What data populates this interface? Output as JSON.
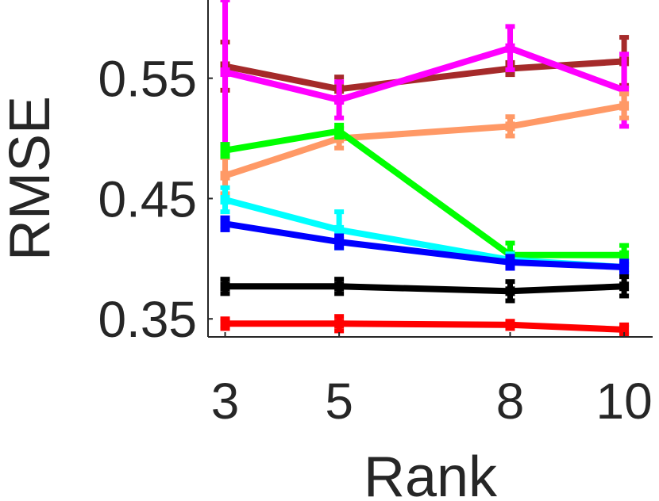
{
  "chart_data": {
    "type": "line",
    "xlabel": "Rank",
    "ylabel": "RMSE",
    "x": [
      3,
      5,
      8,
      10
    ],
    "x_tick_labels": [
      "3",
      "5",
      "8",
      "10"
    ],
    "xlim": [
      2.7,
      10.5
    ],
    "ylim": [
      0.335,
      0.615
    ],
    "y_ticks": [
      0.35,
      0.45,
      0.55
    ],
    "y_tick_labels": [
      "0.35",
      "0.45",
      "0.55"
    ],
    "grid": false,
    "legend": "none",
    "series": [
      {
        "color": "#a52a2a",
        "values": [
          0.56,
          0.541,
          0.558,
          0.564
        ],
        "errors": [
          0.02,
          0.01,
          0.005,
          0.02
        ]
      },
      {
        "color": "#ff00ff",
        "values": [
          0.555,
          0.532,
          0.575,
          0.54
        ],
        "errors": [
          0.06,
          0.015,
          0.018,
          0.03
        ]
      },
      {
        "color": "#ff9966",
        "values": [
          0.469,
          0.5,
          0.51,
          0.527
        ],
        "errors": [
          0.015,
          0.008,
          0.008,
          0.01
        ]
      },
      {
        "color": "#00ff00",
        "values": [
          0.49,
          0.506,
          0.403,
          0.403
        ],
        "errors": [
          0.005,
          0.005,
          0.01,
          0.008
        ]
      },
      {
        "color": "#00ffff",
        "values": [
          0.449,
          0.424,
          0.399,
          0.393
        ],
        "errors": [
          0.01,
          0.015,
          0.005,
          0.005
        ]
      },
      {
        "color": "#0000ff",
        "values": [
          0.429,
          0.414,
          0.397,
          0.393
        ],
        "errors": [
          0.005,
          0.005,
          0.005,
          0.005
        ]
      },
      {
        "color": "#000000",
        "values": [
          0.377,
          0.377,
          0.373,
          0.377
        ],
        "errors": [
          0.006,
          0.006,
          0.008,
          0.008
        ]
      },
      {
        "color": "#ff0000",
        "values": [
          0.346,
          0.346,
          0.345,
          0.341
        ],
        "errors": [
          0.004,
          0.006,
          0.003,
          0.004
        ]
      }
    ]
  }
}
